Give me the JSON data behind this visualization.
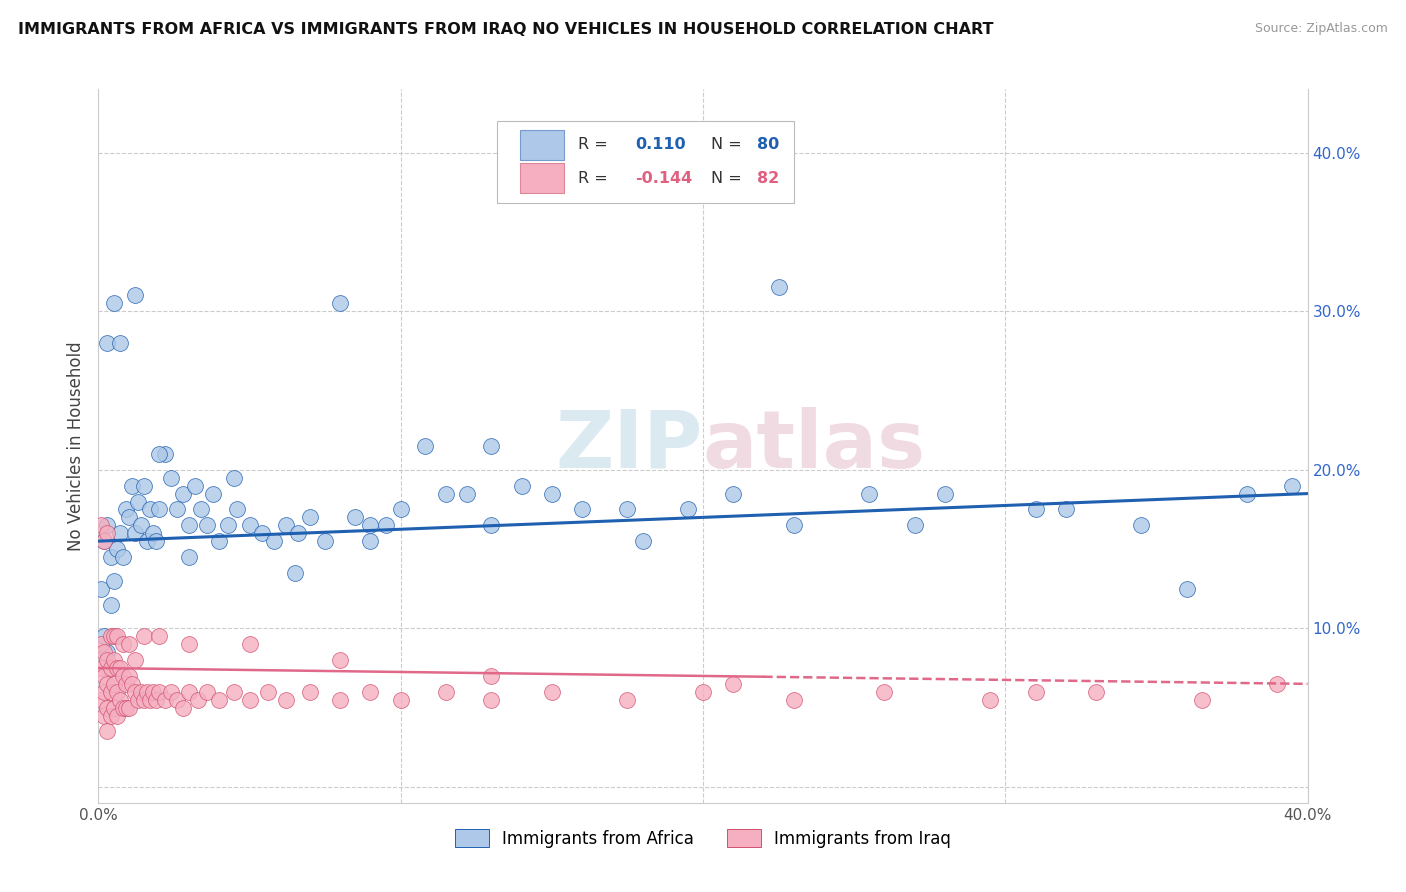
{
  "title": "IMMIGRANTS FROM AFRICA VS IMMIGRANTS FROM IRAQ NO VEHICLES IN HOUSEHOLD CORRELATION CHART",
  "source": "Source: ZipAtlas.com",
  "ylabel": "No Vehicles in Household",
  "xlim": [
    0.0,
    0.4
  ],
  "ylim": [
    -0.01,
    0.44
  ],
  "legend_africa": "Immigrants from Africa",
  "legend_iraq": "Immigrants from Iraq",
  "R_africa": "0.110",
  "N_africa": "80",
  "R_iraq": "-0.144",
  "N_iraq": "82",
  "color_africa": "#adc8e8",
  "color_iraq": "#f5afc0",
  "line_color_africa": "#2060b0",
  "line_color_iraq": "#e06888",
  "watermark": "ZIPatlas",
  "background_color": "#ffffff",
  "africa_x": [
    0.001,
    0.002,
    0.002,
    0.003,
    0.003,
    0.004,
    0.004,
    0.005,
    0.006,
    0.007,
    0.008,
    0.009,
    0.01,
    0.011,
    0.012,
    0.013,
    0.014,
    0.015,
    0.016,
    0.017,
    0.018,
    0.019,
    0.02,
    0.022,
    0.024,
    0.026,
    0.028,
    0.03,
    0.032,
    0.034,
    0.036,
    0.038,
    0.04,
    0.043,
    0.046,
    0.05,
    0.054,
    0.058,
    0.062,
    0.066,
    0.07,
    0.075,
    0.08,
    0.085,
    0.09,
    0.095,
    0.1,
    0.108,
    0.115,
    0.122,
    0.13,
    0.14,
    0.15,
    0.16,
    0.17,
    0.18,
    0.195,
    0.21,
    0.23,
    0.255,
    0.28,
    0.31,
    0.345,
    0.38,
    0.003,
    0.005,
    0.007,
    0.012,
    0.02,
    0.03,
    0.045,
    0.065,
    0.09,
    0.13,
    0.175,
    0.225,
    0.27,
    0.32,
    0.36,
    0.395
  ],
  "africa_y": [
    0.125,
    0.155,
    0.095,
    0.165,
    0.085,
    0.145,
    0.115,
    0.13,
    0.15,
    0.16,
    0.145,
    0.175,
    0.17,
    0.19,
    0.16,
    0.18,
    0.165,
    0.19,
    0.155,
    0.175,
    0.16,
    0.155,
    0.175,
    0.21,
    0.195,
    0.175,
    0.185,
    0.165,
    0.19,
    0.175,
    0.165,
    0.185,
    0.155,
    0.165,
    0.175,
    0.165,
    0.16,
    0.155,
    0.165,
    0.16,
    0.17,
    0.155,
    0.305,
    0.17,
    0.165,
    0.165,
    0.175,
    0.215,
    0.185,
    0.185,
    0.165,
    0.19,
    0.185,
    0.175,
    0.38,
    0.155,
    0.175,
    0.185,
    0.165,
    0.185,
    0.185,
    0.175,
    0.165,
    0.185,
    0.28,
    0.305,
    0.28,
    0.31,
    0.21,
    0.145,
    0.195,
    0.135,
    0.155,
    0.215,
    0.175,
    0.315,
    0.165,
    0.175,
    0.125,
    0.19
  ],
  "iraq_x": [
    0.001,
    0.001,
    0.001,
    0.002,
    0.002,
    0.002,
    0.002,
    0.003,
    0.003,
    0.003,
    0.003,
    0.004,
    0.004,
    0.004,
    0.005,
    0.005,
    0.005,
    0.006,
    0.006,
    0.006,
    0.007,
    0.007,
    0.008,
    0.008,
    0.009,
    0.009,
    0.01,
    0.01,
    0.011,
    0.012,
    0.013,
    0.014,
    0.015,
    0.016,
    0.017,
    0.018,
    0.019,
    0.02,
    0.022,
    0.024,
    0.026,
    0.028,
    0.03,
    0.033,
    0.036,
    0.04,
    0.045,
    0.05,
    0.056,
    0.062,
    0.07,
    0.08,
    0.09,
    0.1,
    0.115,
    0.13,
    0.15,
    0.175,
    0.2,
    0.23,
    0.26,
    0.295,
    0.33,
    0.365,
    0.001,
    0.002,
    0.003,
    0.004,
    0.005,
    0.006,
    0.008,
    0.01,
    0.012,
    0.015,
    0.02,
    0.03,
    0.05,
    0.08,
    0.13,
    0.21,
    0.31,
    0.39
  ],
  "iraq_y": [
    0.09,
    0.075,
    0.055,
    0.085,
    0.07,
    0.06,
    0.045,
    0.08,
    0.065,
    0.05,
    0.035,
    0.075,
    0.06,
    0.045,
    0.08,
    0.065,
    0.05,
    0.075,
    0.06,
    0.045,
    0.075,
    0.055,
    0.07,
    0.05,
    0.065,
    0.05,
    0.07,
    0.05,
    0.065,
    0.06,
    0.055,
    0.06,
    0.055,
    0.06,
    0.055,
    0.06,
    0.055,
    0.06,
    0.055,
    0.06,
    0.055,
    0.05,
    0.06,
    0.055,
    0.06,
    0.055,
    0.06,
    0.055,
    0.06,
    0.055,
    0.06,
    0.055,
    0.06,
    0.055,
    0.06,
    0.055,
    0.06,
    0.055,
    0.06,
    0.055,
    0.06,
    0.055,
    0.06,
    0.055,
    0.165,
    0.155,
    0.16,
    0.095,
    0.095,
    0.095,
    0.09,
    0.09,
    0.08,
    0.095,
    0.095,
    0.09,
    0.09,
    0.08,
    0.07,
    0.065,
    0.06,
    0.065
  ]
}
